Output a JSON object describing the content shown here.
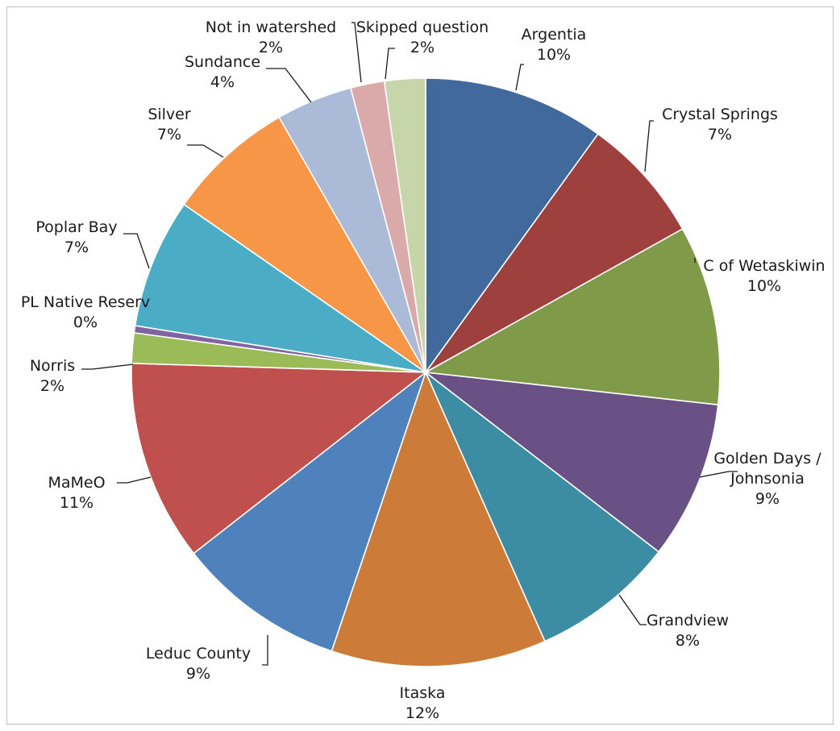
{
  "chart_data": {
    "type": "pie",
    "title": "",
    "start_angle_deg": 0,
    "direction": "clockwise",
    "slices": [
      {
        "label": [
          "Argentia"
        ],
        "percent_label": "10%",
        "value": 10.2,
        "color": "#41699c"
      },
      {
        "label": [
          "Crystal Springs"
        ],
        "percent_label": "7%",
        "value": 7.1,
        "color": "#9e413e"
      },
      {
        "label": [
          "C of Wetaskiwin"
        ],
        "percent_label": "10%",
        "value": 10.1,
        "color": "#7f9a48"
      },
      {
        "label": [
          "Golden Days /",
          "Johnsonia"
        ],
        "percent_label": "9%",
        "value": 8.9,
        "color": "#695185"
      },
      {
        "label": [
          "Grandview"
        ],
        "percent_label": "8%",
        "value": 8.1,
        "color": "#3c8da3"
      },
      {
        "label": [
          "Itaska"
        ],
        "percent_label": "12%",
        "value": 12.1,
        "color": "#cc7b38"
      },
      {
        "label": [
          "Leduc County"
        ],
        "percent_label": "9%",
        "value": 9.5,
        "color": "#4f81bd"
      },
      {
        "label": [
          "MaMeO"
        ],
        "percent_label": "11%",
        "value": 11.3,
        "color": "#c0504d"
      },
      {
        "label": [
          "Norris"
        ],
        "percent_label": "2%",
        "value": 1.7,
        "color": "#9bbb59"
      },
      {
        "label": [
          "PL Native Reserv"
        ],
        "percent_label": "0%",
        "value": 0.4,
        "color": "#8064a2"
      },
      {
        "label": [
          "Poplar Bay"
        ],
        "percent_label": "7%",
        "value": 7.3,
        "color": "#4bacc6"
      },
      {
        "label": [
          "Silver"
        ],
        "percent_label": "7%",
        "value": 7.2,
        "color": "#f79646"
      },
      {
        "label": [
          "Sundance"
        ],
        "percent_label": "4%",
        "value": 4.3,
        "color": "#aabad7"
      },
      {
        "label": [
          "Not in watershed"
        ],
        "percent_label": "2%",
        "value": 1.9,
        "color": "#d9aaa9"
      },
      {
        "label": [
          "Skipped question"
        ],
        "percent_label": "2%",
        "value": 2.3,
        "color": "#c6d6aa"
      }
    ]
  }
}
